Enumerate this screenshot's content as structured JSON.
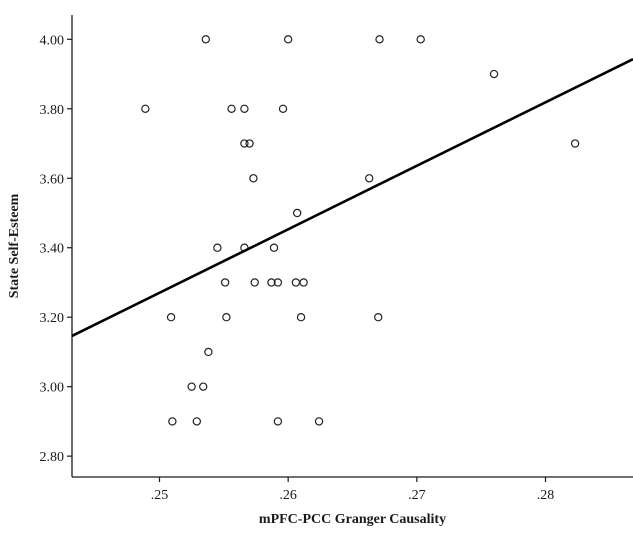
{
  "chart_data": {
    "type": "scatter",
    "title": "",
    "xlabel": "mPFC-PCC Granger Causality",
    "ylabel": "State Self-Esteem",
    "xlim": [
      0.2432,
      0.2868
    ],
    "ylim": [
      2.74,
      4.07
    ],
    "x_ticks": [
      0.25,
      0.26,
      0.27,
      0.28
    ],
    "x_tick_labels": [
      ".25",
      ".26",
      ".27",
      ".28"
    ],
    "y_ticks": [
      2.8,
      3.0,
      3.2,
      3.4,
      3.6,
      3.8,
      4.0
    ],
    "y_tick_labels": [
      "2.80",
      "3.00",
      "3.20",
      "3.40",
      "3.60",
      "3.80",
      "4.00"
    ],
    "grid": false,
    "legend": "none",
    "colors": {
      "axis": "#1a1a1a",
      "point_stroke": "#222222",
      "fit_line": "#000000"
    },
    "points": [
      {
        "x": 0.2536,
        "y": 4.0
      },
      {
        "x": 0.26,
        "y": 4.0
      },
      {
        "x": 0.2671,
        "y": 4.0
      },
      {
        "x": 0.2703,
        "y": 4.0
      },
      {
        "x": 0.276,
        "y": 3.9
      },
      {
        "x": 0.2489,
        "y": 3.8
      },
      {
        "x": 0.2556,
        "y": 3.8
      },
      {
        "x": 0.2566,
        "y": 3.8
      },
      {
        "x": 0.2596,
        "y": 3.8
      },
      {
        "x": 0.2566,
        "y": 3.7
      },
      {
        "x": 0.257,
        "y": 3.7
      },
      {
        "x": 0.2823,
        "y": 3.7
      },
      {
        "x": 0.2573,
        "y": 3.6
      },
      {
        "x": 0.2663,
        "y": 3.6
      },
      {
        "x": 0.2607,
        "y": 3.5
      },
      {
        "x": 0.2545,
        "y": 3.4
      },
      {
        "x": 0.2566,
        "y": 3.4
      },
      {
        "x": 0.2589,
        "y": 3.4
      },
      {
        "x": 0.2551,
        "y": 3.3
      },
      {
        "x": 0.2574,
        "y": 3.3
      },
      {
        "x": 0.2587,
        "y": 3.3
      },
      {
        "x": 0.2592,
        "y": 3.3
      },
      {
        "x": 0.2606,
        "y": 3.3
      },
      {
        "x": 0.2612,
        "y": 3.3
      },
      {
        "x": 0.2509,
        "y": 3.2
      },
      {
        "x": 0.2552,
        "y": 3.2
      },
      {
        "x": 0.261,
        "y": 3.2
      },
      {
        "x": 0.267,
        "y": 3.2
      },
      {
        "x": 0.2538,
        "y": 3.1
      },
      {
        "x": 0.2525,
        "y": 3.0
      },
      {
        "x": 0.2534,
        "y": 3.0
      },
      {
        "x": 0.251,
        "y": 2.9
      },
      {
        "x": 0.2529,
        "y": 2.9
      },
      {
        "x": 0.2592,
        "y": 2.9
      },
      {
        "x": 0.2624,
        "y": 2.9
      }
    ],
    "fit_line": {
      "x": [
        0.2432,
        0.2868
      ],
      "y": [
        3.146,
        3.943
      ]
    }
  }
}
